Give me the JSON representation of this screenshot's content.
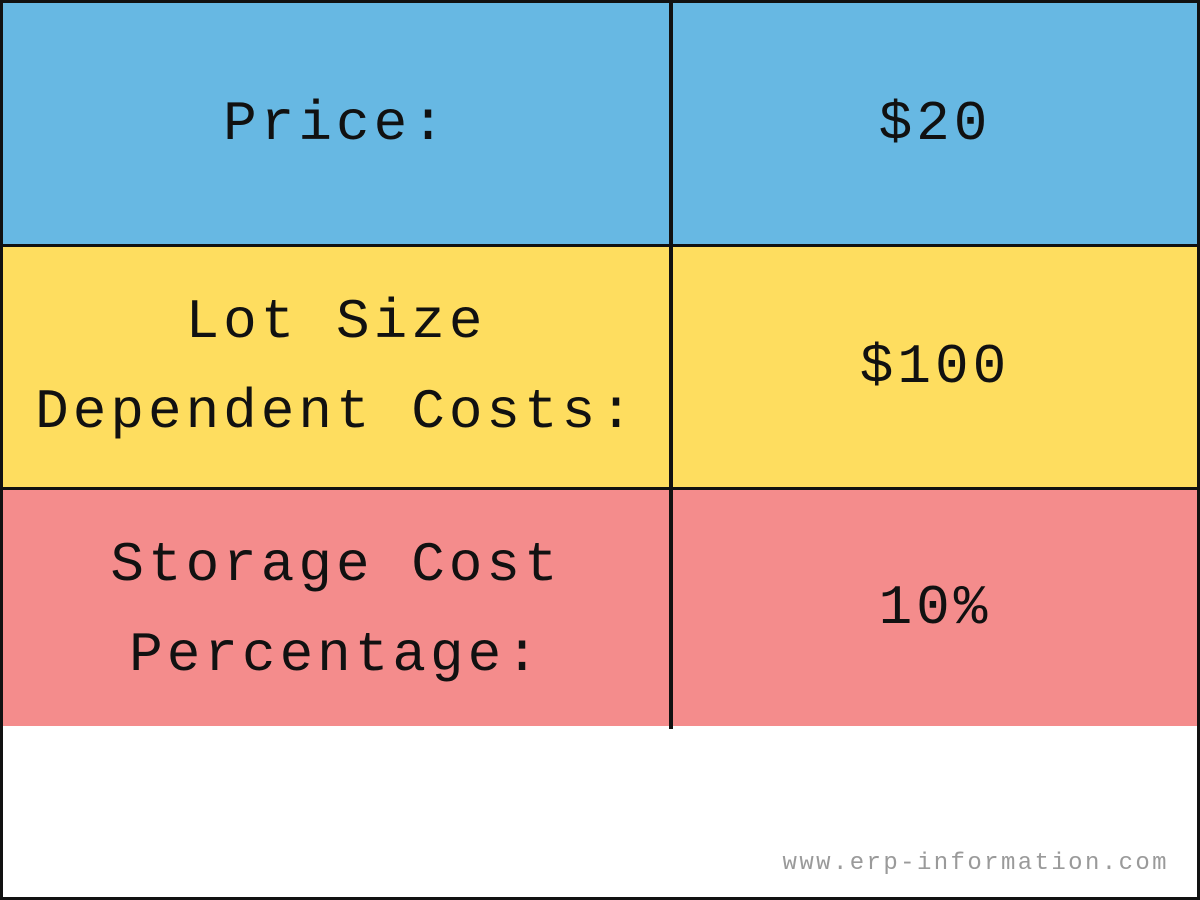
{
  "table": {
    "rows": [
      {
        "label": [
          "Price:"
        ],
        "value": "$20"
      },
      {
        "label": [
          "Lot Size",
          "Dependent Costs:"
        ],
        "value": "$100"
      },
      {
        "label": [
          "Storage Cost",
          "Percentage:"
        ],
        "value": "10%"
      }
    ]
  },
  "footer": {
    "watermark": "www.erp-information.com"
  }
}
